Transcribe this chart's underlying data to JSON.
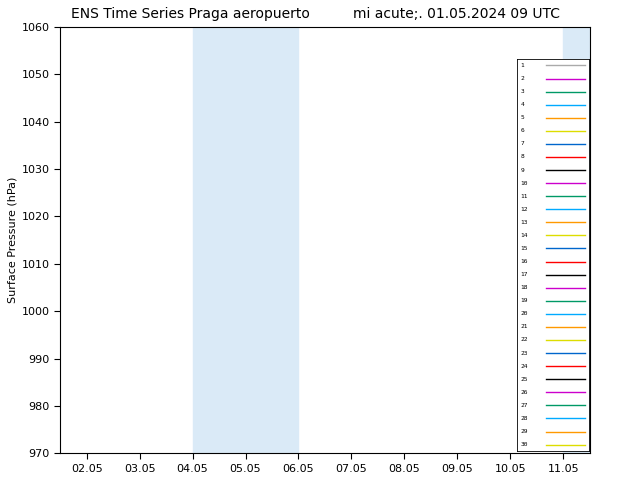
{
  "title_left": "ENS Time Series Praga aeropuerto",
  "title_right": "mi acute;. 01.05.2024 09 UTC",
  "ylabel": "Surface Pressure (hPa)",
  "ylim": [
    970,
    1060
  ],
  "yticks": [
    970,
    980,
    990,
    1000,
    1010,
    1020,
    1030,
    1040,
    1050,
    1060
  ],
  "xtick_labels": [
    "02.05",
    "03.05",
    "04.05",
    "05.05",
    "06.05",
    "07.05",
    "08.05",
    "09.05",
    "10.05",
    "11.05"
  ],
  "n_members": 30,
  "background_color": "#ffffff",
  "shaded_color": "#daeaf7",
  "shaded_alpha": 1.0,
  "line_width": 0.8,
  "legend_fontsize": 5.5,
  "title_fontsize": 10,
  "color_cycle": [
    "#aaaaaa",
    "#cc00cc",
    "#009966",
    "#00aaff",
    "#ff9900",
    "#dddd00",
    "#0066cc",
    "#ff0000",
    "#000000",
    "#cc00cc",
    "#009966",
    "#00aaff",
    "#ff9900",
    "#dddd00",
    "#0066cc",
    "#ff0000",
    "#000000",
    "#cc00cc",
    "#009966",
    "#00aaff",
    "#ff9900",
    "#dddd00",
    "#0066cc",
    "#ff0000",
    "#000000",
    "#cc00cc",
    "#009966",
    "#00aaff",
    "#ff9900",
    "#dddd00"
  ]
}
